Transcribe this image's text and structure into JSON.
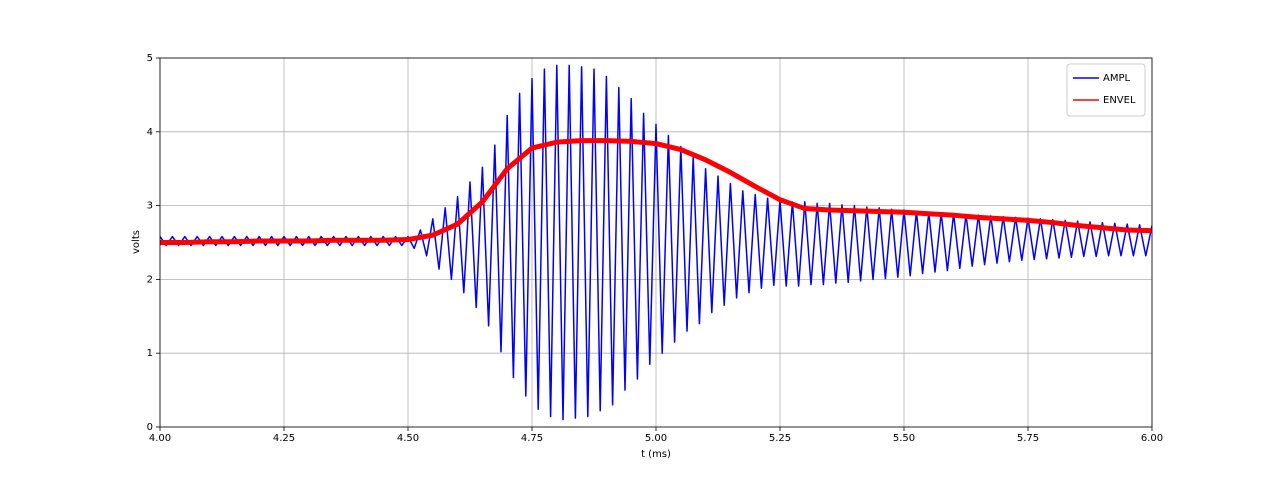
{
  "chart_data": {
    "type": "line",
    "xlabel": "t (ms)",
    "ylabel": "volts",
    "xlim": [
      4.0,
      6.0
    ],
    "ylim": [
      0,
      5
    ],
    "xticks": [
      {
        "value": 4.0,
        "label": "4.00"
      },
      {
        "value": 4.25,
        "label": "4.25"
      },
      {
        "value": 4.5,
        "label": "4.50"
      },
      {
        "value": 4.75,
        "label": "4.75"
      },
      {
        "value": 5.0,
        "label": "5.00"
      },
      {
        "value": 5.25,
        "label": "5.25"
      },
      {
        "value": 5.5,
        "label": "5.50"
      },
      {
        "value": 5.75,
        "label": "5.75"
      },
      {
        "value": 6.0,
        "label": "6.00"
      }
    ],
    "yticks": [
      0,
      1,
      2,
      3,
      4,
      5
    ],
    "grid": true,
    "legend": "upper right",
    "series": [
      {
        "name": "AMPL",
        "color": "#0000ff",
        "x": [
          4,
          4.0125,
          4.025,
          4.0375,
          4.05,
          4.0625,
          4.075,
          4.0875,
          4.1,
          4.1125,
          4.125,
          4.1375,
          4.15,
          4.1625,
          4.175,
          4.1875,
          4.2,
          4.2125,
          4.225,
          4.2375,
          4.25,
          4.2625,
          4.275,
          4.2875,
          4.3,
          4.3125,
          4.325,
          4.3375,
          4.35,
          4.3625,
          4.375,
          4.3875,
          4.4,
          4.4125,
          4.425,
          4.4375,
          4.45,
          4.4625,
          4.475,
          4.4875,
          4.5,
          4.5125,
          4.525,
          4.5375,
          4.55,
          4.5625,
          4.575,
          4.5875,
          4.6,
          4.6125,
          4.625,
          4.6375,
          4.65,
          4.6625,
          4.675,
          4.6875,
          4.7,
          4.7125,
          4.725,
          4.7375,
          4.75,
          4.7625,
          4.775,
          4.7875,
          4.8,
          4.8125,
          4.825,
          4.8375,
          4.85,
          4.8625,
          4.875,
          4.8875,
          4.9,
          4.9125,
          4.925,
          4.9375,
          4.95,
          4.9625,
          4.975,
          4.9875,
          5,
          5.0125,
          5.025,
          5.0375,
          5.05,
          5.0625,
          5.075,
          5.0875,
          5.1,
          5.1125,
          5.125,
          5.1375,
          5.15,
          5.1625,
          5.175,
          5.1875,
          5.2,
          5.2125,
          5.225,
          5.2375,
          5.25,
          5.2625,
          5.275,
          5.2875,
          5.3,
          5.3125,
          5.325,
          5.3375,
          5.35,
          5.3625,
          5.375,
          5.3875,
          5.4,
          5.4125,
          5.425,
          5.4375,
          5.45,
          5.4625,
          5.475,
          5.4875,
          5.5,
          5.5125,
          5.525,
          5.5375,
          5.55,
          5.5625,
          5.575,
          5.5875,
          5.6,
          5.6125,
          5.625,
          5.6375,
          5.65,
          5.6625,
          5.675,
          5.6875,
          5.7,
          5.7125,
          5.725,
          5.7375,
          5.75,
          5.7625,
          5.775,
          5.7875,
          5.8,
          5.8125,
          5.825,
          5.8375,
          5.85,
          5.8625,
          5.875,
          5.8875,
          5.9,
          5.9125,
          5.925,
          5.9375,
          5.95,
          5.9625,
          5.975,
          5.9875,
          6
        ],
        "values": [
          2.58,
          2.46,
          2.58,
          2.46,
          2.58,
          2.46,
          2.58,
          2.46,
          2.58,
          2.46,
          2.58,
          2.46,
          2.58,
          2.46,
          2.58,
          2.46,
          2.58,
          2.46,
          2.58,
          2.46,
          2.58,
          2.46,
          2.58,
          2.46,
          2.58,
          2.46,
          2.58,
          2.46,
          2.58,
          2.46,
          2.58,
          2.46,
          2.58,
          2.46,
          2.58,
          2.46,
          2.58,
          2.46,
          2.58,
          2.46,
          2.58,
          2.42,
          2.67,
          2.32,
          2.82,
          2.14,
          2.97,
          2.0,
          3.12,
          1.82,
          3.32,
          1.62,
          3.52,
          1.37,
          3.82,
          1.02,
          4.22,
          0.67,
          4.52,
          0.42,
          4.72,
          0.24,
          4.85,
          0.14,
          4.9,
          0.1,
          4.9,
          0.12,
          4.88,
          0.14,
          4.85,
          0.22,
          4.75,
          0.3,
          4.6,
          0.5,
          4.45,
          0.65,
          4.25,
          0.85,
          4.1,
          1.0,
          3.95,
          1.15,
          3.8,
          1.3,
          3.65,
          1.4,
          3.5,
          1.55,
          3.4,
          1.65,
          3.3,
          1.75,
          3.2,
          1.82,
          3.15,
          1.88,
          3.1,
          1.92,
          3.07,
          1.91,
          3.05,
          1.91,
          3.05,
          1.93,
          3.03,
          1.93,
          3.03,
          1.95,
          3.01,
          1.96,
          3.0,
          1.98,
          2.98,
          2.0,
          2.97,
          2.01,
          2.95,
          2.03,
          2.94,
          2.05,
          2.92,
          2.08,
          2.91,
          2.1,
          2.9,
          2.12,
          2.89,
          2.15,
          2.88,
          2.18,
          2.87,
          2.2,
          2.86,
          2.22,
          2.85,
          2.24,
          2.84,
          2.26,
          2.83,
          2.27,
          2.82,
          2.28,
          2.81,
          2.29,
          2.8,
          2.3,
          2.79,
          2.31,
          2.78,
          2.31,
          2.77,
          2.32,
          2.76,
          2.32,
          2.75,
          2.32,
          2.74,
          2.32,
          2.73
        ]
      },
      {
        "name": "ENVEL",
        "color": "#ff0000",
        "x": [
          4,
          4.05,
          4.1,
          4.15,
          4.2,
          4.25,
          4.3,
          4.35,
          4.4,
          4.45,
          4.5,
          4.55,
          4.6,
          4.65,
          4.7,
          4.75,
          4.8,
          4.85,
          4.9,
          4.95,
          5,
          5.05,
          5.1,
          5.15,
          5.2,
          5.25,
          5.3,
          5.35,
          5.4,
          5.45,
          5.5,
          5.55,
          5.6,
          5.65,
          5.7,
          5.75,
          5.8,
          5.85,
          5.9,
          5.95,
          6
        ],
        "values": [
          2.5,
          2.5,
          2.51,
          2.51,
          2.52,
          2.52,
          2.52,
          2.53,
          2.53,
          2.53,
          2.54,
          2.6,
          2.75,
          3.05,
          3.5,
          3.78,
          3.86,
          3.88,
          3.88,
          3.87,
          3.84,
          3.76,
          3.62,
          3.45,
          3.26,
          3.08,
          2.96,
          2.94,
          2.93,
          2.92,
          2.91,
          2.89,
          2.87,
          2.84,
          2.82,
          2.8,
          2.77,
          2.73,
          2.7,
          2.67,
          2.66
        ]
      }
    ]
  }
}
